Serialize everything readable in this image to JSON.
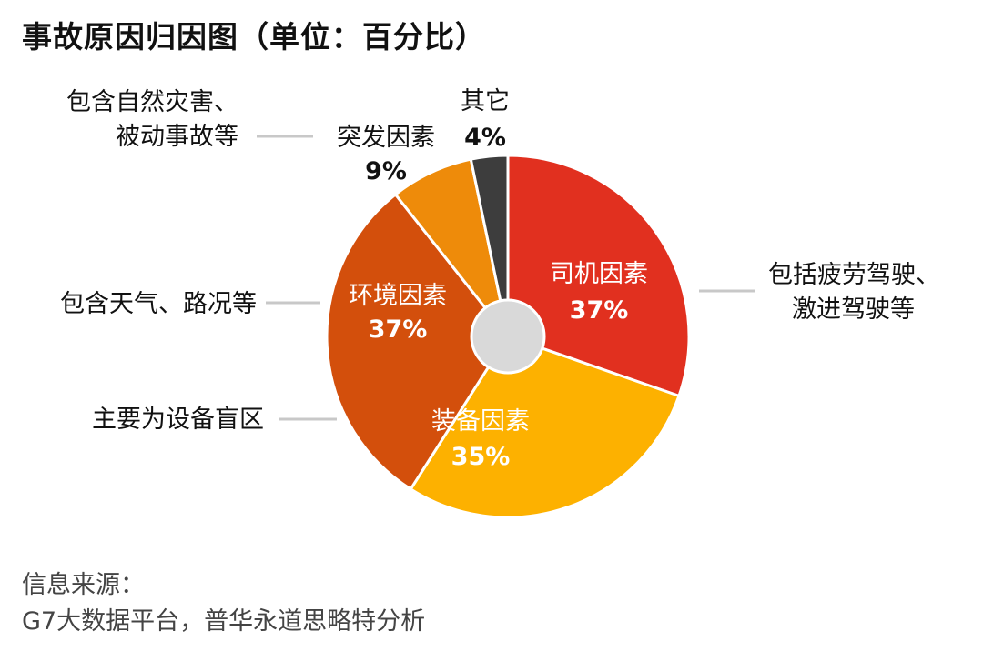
{
  "title": "事故原因归因图（单位：百分比）",
  "source": {
    "heading": "信息来源：",
    "text": "G7大数据平台，普华永道思略特分析"
  },
  "chart_data": {
    "type": "pie",
    "donut_hole": true,
    "start": "12 o'clock",
    "direction": "clockwise",
    "categories": [
      "司机因素",
      "装备因素",
      "环境因素",
      "突发因素",
      "其它"
    ],
    "values": [
      37,
      35,
      37,
      9,
      4
    ],
    "value_labels": [
      "37%",
      "35%",
      "37%",
      "9%",
      "4%"
    ],
    "colors": [
      "#e1301f",
      "#fdb100",
      "#d34f0c",
      "#ee8b0a",
      "#3d3d3d"
    ],
    "annotations": [
      {
        "category": "司机因素",
        "lines": [
          "包括疲劳驾驶、",
          "激进驾驶等"
        ]
      },
      {
        "category": "装备因素",
        "lines": [
          "主要为设备盲区"
        ]
      },
      {
        "category": "环境因素",
        "lines": [
          "包含天气、路况等"
        ]
      },
      {
        "category": "突发因素",
        "lines": [
          "包含自然灾害、",
          "被动事故等"
        ]
      }
    ]
  }
}
